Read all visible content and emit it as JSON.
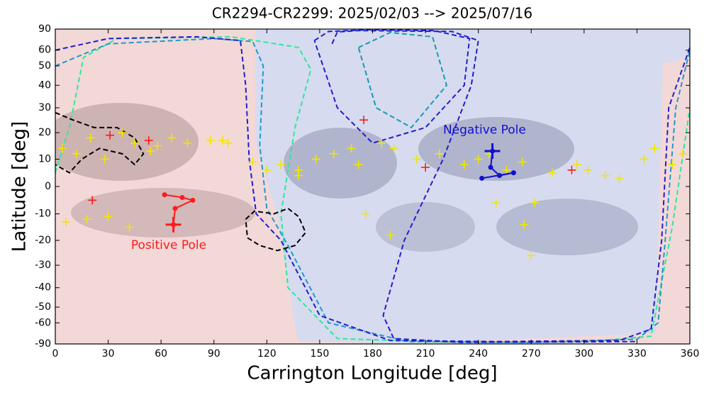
{
  "chart_data": {
    "type": "scatter",
    "title": "CR2294-CR2299: 2025/02/03  -->  2025/07/16",
    "x_label": "Carrington Longitude [deg]",
    "y_label": "Latitude [deg]",
    "xlim": [
      0,
      360
    ],
    "ylim": [
      -90,
      90
    ],
    "yscale": "sine",
    "xticks": [
      0,
      30,
      60,
      90,
      120,
      150,
      180,
      210,
      240,
      270,
      300,
      330,
      360
    ],
    "yticks": [
      90,
      60,
      50,
      40,
      30,
      20,
      10,
      0,
      -10,
      -20,
      -30,
      -40,
      -50,
      -60,
      -90
    ],
    "annotations": [
      {
        "text": "Positive Pole",
        "x": 43,
        "y": -22,
        "color": "#ff1a1a"
      },
      {
        "text": "Negative Pole",
        "x": 220,
        "y": 21,
        "color": "#1010d0"
      }
    ],
    "series": [
      {
        "style": "dashed",
        "color": "#2ee89a",
        "x": [
          0,
          8,
          16,
          35,
          100,
          138,
          145,
          136,
          128,
          132,
          160,
          220,
          300,
          338,
          350,
          360
        ],
        "y": [
          5,
          22,
          55,
          70,
          72,
          62,
          48,
          22,
          -10,
          -40,
          -75,
          -81,
          -81,
          -72,
          -15,
          30
        ]
      },
      {
        "style": "dashed",
        "color": "#1e9acc",
        "x": [
          0,
          30,
          90,
          112,
          118,
          116,
          120,
          132,
          155,
          200,
          270,
          330,
          342,
          346,
          352,
          360
        ],
        "y": [
          50,
          65,
          70,
          67,
          50,
          15,
          -8,
          -22,
          -60,
          -80,
          -82,
          -76,
          -60,
          -20,
          30,
          60
        ]
      },
      {
        "style": "dashed",
        "color": "#1f1fd0",
        "x": [
          0,
          30,
          80,
          105,
          108,
          110,
          114,
          128,
          150,
          190,
          250,
          320,
          338,
          344,
          348,
          360
        ],
        "y": [
          60,
          70,
          72,
          68,
          40,
          10,
          -10,
          -20,
          -55,
          -78,
          -80,
          -78,
          -65,
          -20,
          30,
          62
        ]
      },
      {
        "style": "dashed",
        "color": "#1f1fd0",
        "x": [
          147,
          155,
          178,
          215,
          235,
          232,
          210,
          180,
          160,
          147
        ],
        "y": [
          68,
          80,
          85,
          82,
          70,
          40,
          22,
          16,
          30,
          68
        ]
      },
      {
        "style": "dashed",
        "color": "#1a9ab0",
        "x": [
          172,
          190,
          214,
          222,
          202,
          182,
          172
        ],
        "y": [
          62,
          78,
          72,
          40,
          22,
          30,
          62
        ]
      },
      {
        "style": "dashed",
        "color": "#1f1fd0",
        "x": [
          157,
          160,
          172,
          225,
          240,
          236,
          220,
          198,
          186,
          192,
          230,
          330
        ],
        "y": [
          65,
          79,
          82,
          80,
          68,
          40,
          10,
          -20,
          -55,
          -75,
          -82,
          -80
        ]
      },
      {
        "style": "dashed",
        "color": "#000000",
        "x": [
          0,
          10,
          22,
          35,
          45,
          50,
          45,
          38,
          25,
          15,
          8,
          0
        ],
        "y": [
          28,
          25,
          22,
          22,
          18,
          12,
          8,
          12,
          14,
          10,
          5,
          8
        ]
      },
      {
        "style": "dashed",
        "color": "#000000",
        "x": [
          108,
          113,
          124,
          132,
          138,
          142,
          136,
          126,
          116,
          109,
          108
        ],
        "y": [
          -12,
          -9,
          -10,
          -8,
          -11,
          -17,
          -22,
          -24,
          -22,
          -19,
          -12
        ]
      },
      {
        "style": "plus",
        "color": "#f2e600",
        "size": 6,
        "x": [
          4,
          12,
          20,
          28,
          38,
          45,
          58,
          75,
          88,
          98,
          112,
          120,
          128,
          138,
          148,
          158,
          168,
          172,
          185,
          192,
          205,
          218,
          232,
          240,
          246,
          256,
          265,
          272,
          282,
          296,
          302,
          312,
          320,
          334,
          340,
          350,
          356,
          6,
          18,
          30,
          42,
          176,
          190,
          250,
          266,
          270,
          138,
          54,
          66,
          95
        ],
        "y": [
          14,
          12,
          18,
          10,
          20,
          16,
          15,
          16,
          17,
          16,
          9,
          6,
          8,
          4,
          10,
          12,
          14,
          8,
          16,
          14,
          10,
          12,
          8,
          10,
          12,
          6,
          9,
          -6,
          5,
          8,
          6,
          4,
          3,
          10,
          14,
          8,
          12,
          -13,
          -12,
          -11,
          -15,
          -10,
          -18,
          -6,
          -14,
          -26,
          6,
          13,
          18,
          17
        ]
      },
      {
        "style": "plus",
        "color": "#ff1a1a",
        "size": 6,
        "x": [
          31,
          53,
          21,
          175,
          210,
          293
        ],
        "y": [
          19,
          17,
          -5,
          25,
          7,
          6
        ]
      },
      {
        "style": "line",
        "color": "#ff1a1a",
        "x": [
          62,
          72,
          78,
          68,
          67
        ],
        "y": [
          -3,
          -4,
          -5,
          -8,
          -14
        ]
      },
      {
        "style": "line",
        "color": "#1010d0",
        "x": [
          248,
          247,
          252,
          260,
          242
        ],
        "y": [
          13,
          7,
          4,
          5,
          3
        ]
      },
      {
        "style": "plus",
        "color": "#ff1a1a",
        "size": 11,
        "x": [
          67
        ],
        "y": [
          -14
        ]
      },
      {
        "style": "plus",
        "color": "#1010d0",
        "size": 11,
        "x": [
          248
        ],
        "y": [
          13
        ]
      }
    ]
  }
}
